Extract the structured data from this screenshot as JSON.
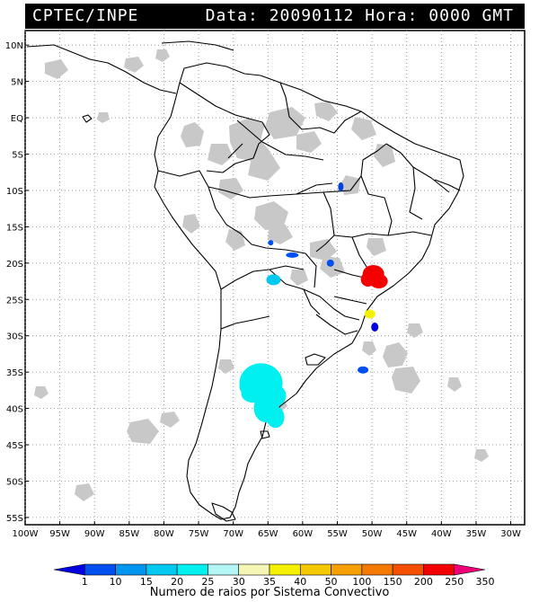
{
  "header": {
    "source": "CPTEC/INPE",
    "date_label": "Data:",
    "date_value": "20090112",
    "hour_label": "Hora:",
    "hour_value": "0000",
    "tz": "GMT"
  },
  "axes": {
    "lat_labels": [
      "10N",
      "5N",
      "EQ",
      "5S",
      "10S",
      "15S",
      "20S",
      "25S",
      "30S",
      "35S",
      "40S",
      "45S",
      "50S",
      "55S"
    ],
    "lat_values": [
      10,
      5,
      0,
      -5,
      -10,
      -15,
      -20,
      -25,
      -30,
      -35,
      -40,
      -45,
      -50,
      -55
    ],
    "lon_labels": [
      "100W",
      "95W",
      "90W",
      "85W",
      "80W",
      "75W",
      "70W",
      "65W",
      "60W",
      "55W",
      "50W",
      "45W",
      "40W",
      "35W",
      "30W"
    ],
    "lon_values": [
      -100,
      -95,
      -90,
      -85,
      -80,
      -75,
      -70,
      -65,
      -60,
      -55,
      -50,
      -45,
      -40,
      -35,
      -30
    ],
    "lon_range": [
      -100,
      -28
    ],
    "lat_range": [
      -56,
      12
    ],
    "grid": "dotted"
  },
  "legend": {
    "title": "Numero de raios por Sistema Convectivo",
    "values": [
      "1",
      "10",
      "15",
      "20",
      "25",
      "30",
      "35",
      "40",
      "50",
      "100",
      "150",
      "200",
      "250",
      "350"
    ],
    "colors": [
      "#0000e0",
      "#0050f0",
      "#0096f0",
      "#00c8f0",
      "#00f0f0",
      "#b4f5f5",
      "#f5f5b4",
      "#f5f000",
      "#f5c800",
      "#f5a000",
      "#f57800",
      "#f55000",
      "#f50000",
      "#f00078"
    ]
  },
  "features": {
    "cloud_color": "#c8c8c8",
    "land_line": "#000000",
    "systems": [
      {
        "name": "central-brazil-small-blue",
        "lon": -54.5,
        "lat": -9.5,
        "color": "#0040e0"
      },
      {
        "name": "bolivia-blue",
        "lon": -64.6,
        "lat": -17.2,
        "color": "#0050f0"
      },
      {
        "name": "mato-grosso-blue",
        "lon": -61.5,
        "lat": -18.9,
        "color": "#0050f0"
      },
      {
        "name": "paraguay-border-blue",
        "lon": -56.0,
        "lat": -20.0,
        "color": "#0050f0"
      },
      {
        "name": "sao-paulo-red",
        "lon": -49.8,
        "lat": -21.5,
        "color": "#f50000"
      },
      {
        "name": "salta-cyan",
        "lon": -64.2,
        "lat": -22.3,
        "color": "#00c8f0"
      },
      {
        "name": "santa-catarina-yellow",
        "lon": -50.3,
        "lat": -27.0,
        "color": "#f5f000"
      },
      {
        "name": "rio-grande-blue",
        "lon": -49.6,
        "lat": -28.8,
        "color": "#0000e0"
      },
      {
        "name": "atlantic-blue",
        "lon": -51.3,
        "lat": -34.7,
        "color": "#0050f0"
      },
      {
        "name": "pampa-cyan",
        "lon": -66.0,
        "lat": -36.5,
        "color": "#00f0f0"
      }
    ]
  }
}
